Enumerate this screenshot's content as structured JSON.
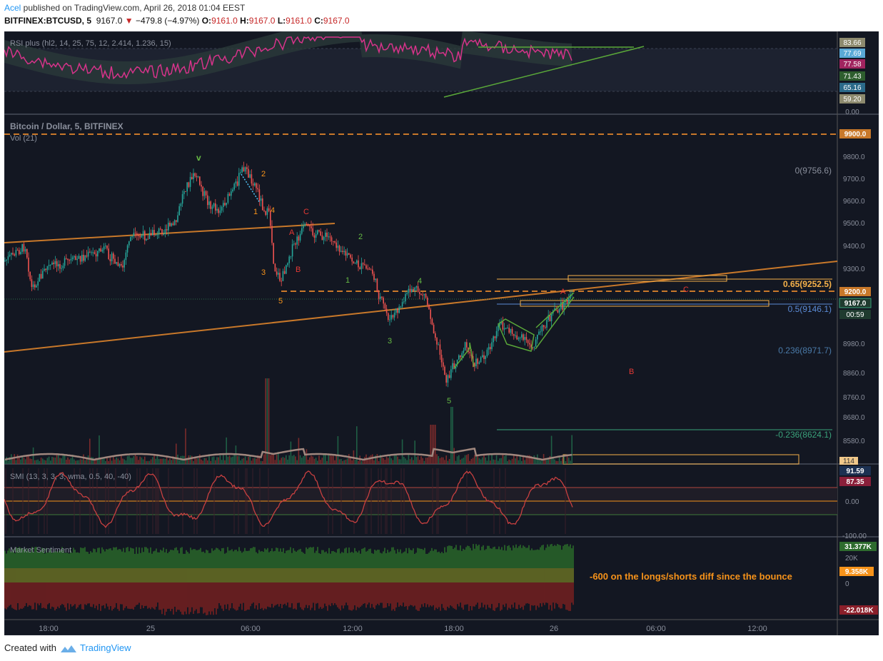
{
  "header": {
    "user": "Acel",
    "published_text": " published on TradingView.com, April 26, 2018 01:04 EEST",
    "symbol": "BITFINEX:BTCUSD, 5",
    "price": "9167.0",
    "change": "−479.8 (−4.97%)",
    "o_label": "O:",
    "o_value": "9161.0",
    "h_label": "H:",
    "h_value": "9167.0",
    "l_label": "L:",
    "l_value": "9161.0",
    "c_label": "C:",
    "c_value": "9167.0"
  },
  "footer": {
    "created_with": "Created with",
    "brand": "TradingView"
  },
  "colors": {
    "background": "#131722",
    "rsi_line": "#d6338a",
    "trend_green": "#5aa839",
    "trend_orange": "#c8782a",
    "wave_orange": "#f7931a",
    "wave_red": "#e53935",
    "wave_green": "#66bb44",
    "vol_up": "#26a69a",
    "vol_down": "#ef5350"
  },
  "chart_data": [
    {
      "type": "line",
      "title": "RSI plus (hl2, 14, 25, 75, 12, 2.414, 1.236, 15)",
      "price_tags": [
        "83.66",
        "77.69",
        "77.58",
        "71.43",
        "65.16",
        "59.20",
        "0.00"
      ],
      "ylim": [
        59.2,
        83.66
      ]
    },
    {
      "type": "line",
      "title": "Bitcoin / Dollar, 5, BITFINEX",
      "subtitle": "Vol (21)",
      "y_ticks": [
        "9800.0",
        "9700.0",
        "9600.0",
        "9500.0",
        "9400.0",
        "9300.0",
        "8980.0",
        "8860.0",
        "8760.0",
        "8680.0",
        "8580.0"
      ],
      "price_tags": {
        "resistance": "9900.0",
        "support": "9200.0",
        "last": "9167.0",
        "countdown": "00:59",
        "volume": "114"
      },
      "fib_levels": [
        {
          "label": "0(9756.6)",
          "value": 9756.6
        },
        {
          "label": "0.65(9252.5)",
          "value": 9252.5
        },
        {
          "label": "0.5(9146.1)",
          "value": 9146.1
        },
        {
          "label": "0.236(8971.7)",
          "value": 8971.7
        },
        {
          "label": "-0.236(8624.1)",
          "value": 8624.1
        }
      ],
      "wave_labels": [
        "v",
        "2",
        "1",
        "4",
        "C",
        "A",
        "3",
        "B",
        "5",
        "2",
        "1",
        "4",
        "3",
        "5",
        "A",
        "C",
        "B"
      ],
      "x_ticks": [
        "18:00",
        "25",
        "06:00",
        "12:00",
        "18:00",
        "26",
        "06:00",
        "12:00"
      ]
    },
    {
      "type": "line",
      "title": "SMI (13, 3, 3, 3, wma, 0.5, 40, -40)",
      "price_tags": [
        "91.59",
        "87.35",
        "0.00",
        "-100.00"
      ]
    },
    {
      "type": "bar",
      "title": "Market Sentiment",
      "price_tags": [
        "31.377K",
        "20K",
        "9.358K",
        "0",
        "-22.018K"
      ],
      "annotation": "-600 on the longs/shorts diff since the bounce"
    }
  ]
}
